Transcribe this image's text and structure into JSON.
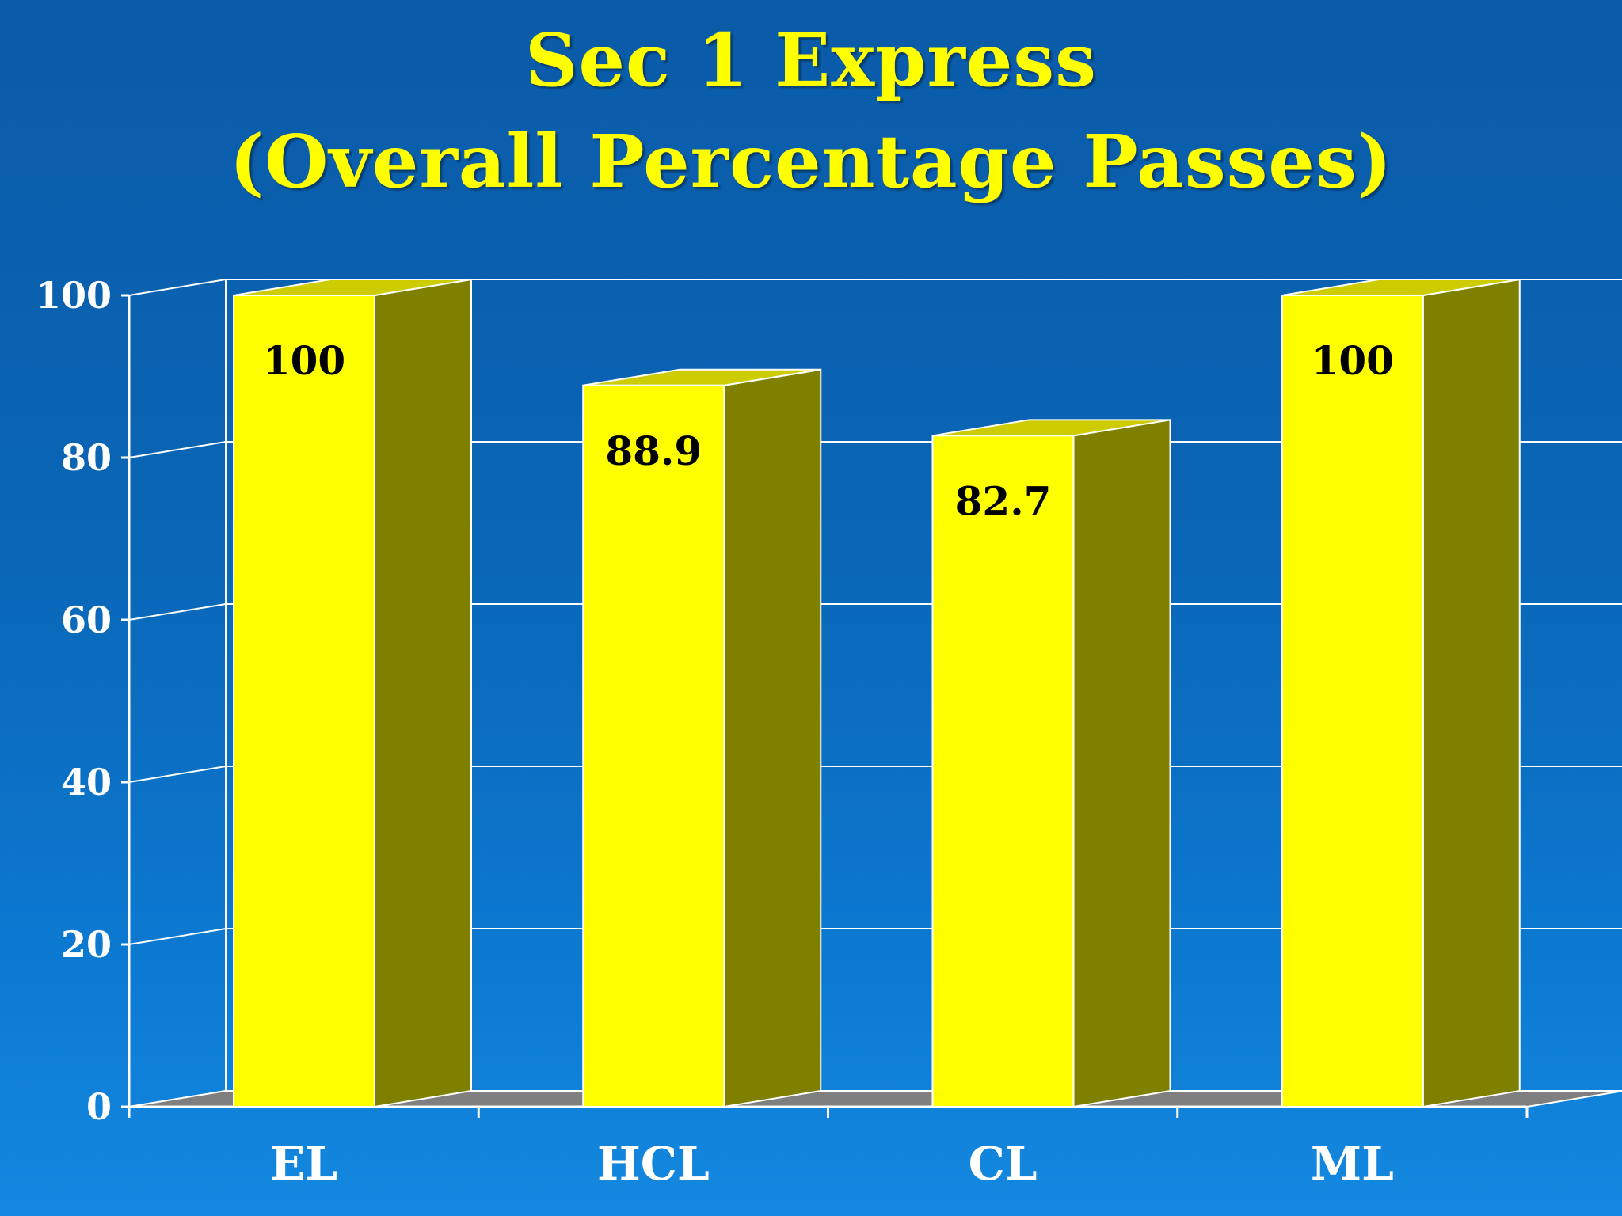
{
  "chart_data": {
    "type": "bar",
    "title": "Sec 1 Express",
    "subtitle": "(Overall Percentage Passes)",
    "categories": [
      "EL",
      "HCL",
      "CL",
      "ML"
    ],
    "values": [
      100,
      88.9,
      82.7,
      100
    ],
    "data_labels": [
      "100",
      "88.9",
      "82.7",
      "100"
    ],
    "yticks": [
      "0",
      "20",
      "40",
      "60",
      "80",
      "100"
    ],
    "ylim": [
      0,
      100
    ],
    "xlabel": "",
    "ylabel": "",
    "grid": true,
    "style": "3d-column"
  },
  "colors": {
    "background_top": "#0a5ba8",
    "background_bottom": "#1488e0",
    "title": "#ffff00",
    "bar_front": "#ffff00",
    "bar_side": "#808000",
    "bar_top": "#cccc00",
    "gridline": "#ffffff",
    "floor": "#7f7f7f",
    "axis_text": "#ffffff",
    "label_text": "#000000"
  }
}
